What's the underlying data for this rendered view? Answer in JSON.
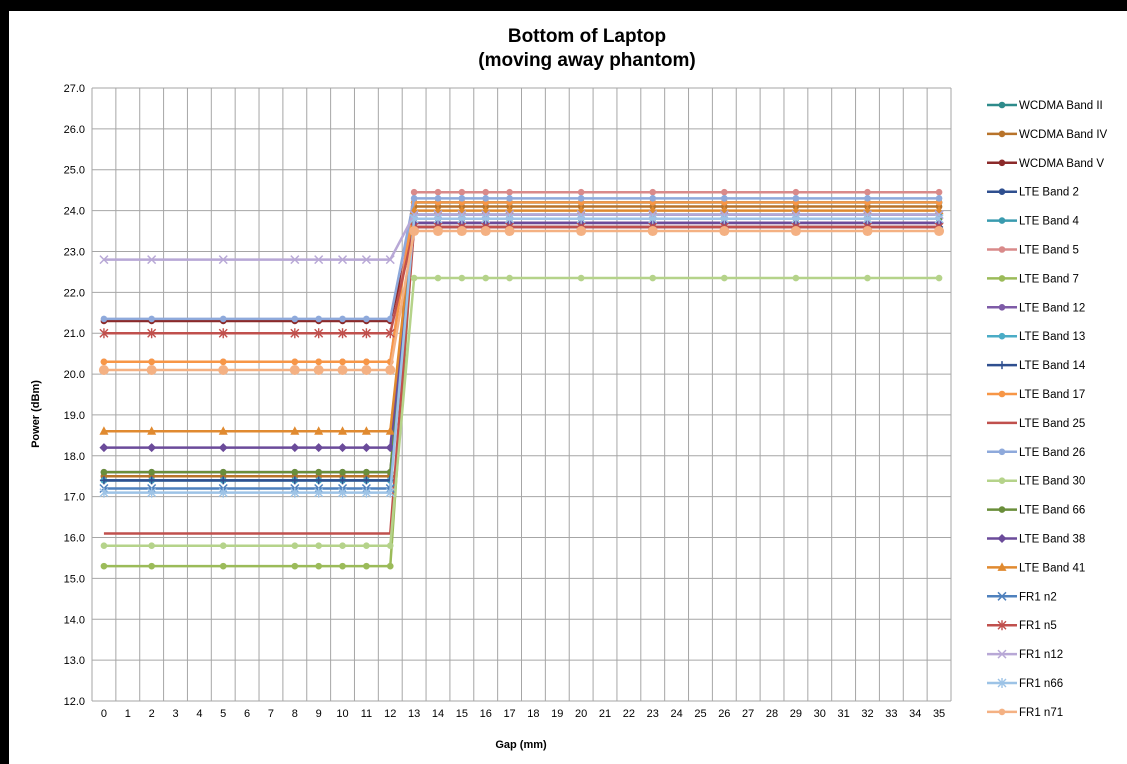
{
  "chart_data": {
    "type": "line",
    "title_line1": "Bottom of Laptop",
    "title_line2": "(moving away phantom)",
    "xlabel": "Gap (mm)",
    "ylabel": "Power (dBm)",
    "ylim": [
      12.0,
      27.0
    ],
    "yticks": [
      "12.0",
      "13.0",
      "14.0",
      "15.0",
      "16.0",
      "17.0",
      "18.0",
      "19.0",
      "20.0",
      "21.0",
      "22.0",
      "23.0",
      "24.0",
      "25.0",
      "26.0",
      "27.0"
    ],
    "categories": [
      "0",
      "1",
      "2",
      "3",
      "4",
      "5",
      "6",
      "7",
      "8",
      "9",
      "10",
      "11",
      "12",
      "13",
      "14",
      "15",
      "16",
      "17",
      "18",
      "19",
      "20",
      "21",
      "22",
      "23",
      "24",
      "25",
      "26",
      "27",
      "28",
      "29",
      "30",
      "31",
      "32",
      "33",
      "34",
      "35"
    ],
    "grid": true,
    "legend_position": "right",
    "marker_x": [
      0,
      2,
      5,
      8,
      9,
      10,
      11,
      12,
      13,
      14,
      15,
      16,
      17,
      20,
      23,
      26,
      29,
      32,
      35
    ],
    "series": [
      {
        "name": "WCDMA Band II",
        "color": "#2E8B8B",
        "marker": "circle",
        "before": 17.5,
        "after": 24.2
      },
      {
        "name": "WCDMA Band IV",
        "color": "#B8732A",
        "marker": "circle",
        "before": 17.5,
        "after": 24.1
      },
      {
        "name": "WCDMA Band V",
        "color": "#8B2A2A",
        "marker": "circle",
        "before": 21.3,
        "after": 23.7
      },
      {
        "name": "LTE Band 2",
        "color": "#2F4F8F",
        "marker": "circle",
        "before": 17.4,
        "after": 23.6
      },
      {
        "name": "LTE Band 4",
        "color": "#3A9BAF",
        "marker": "circle",
        "before": 17.4,
        "after": 24.2
      },
      {
        "name": "LTE Band 5",
        "color": "#D98A8A",
        "marker": "circle",
        "before": 20.3,
        "after": 24.45
      },
      {
        "name": "LTE Band 7",
        "color": "#9BBB59",
        "marker": "circle",
        "before": 15.3,
        "after": 23.8
      },
      {
        "name": "LTE Band 12",
        "color": "#7E5BA7",
        "marker": "circle",
        "before": 17.6,
        "after": 23.7
      },
      {
        "name": "LTE Band 13",
        "color": "#4BACC6",
        "marker": "circle",
        "before": 17.4,
        "after": 23.9
      },
      {
        "name": "LTE Band 14",
        "color": "#2F4F8F",
        "marker": "plus",
        "before": 17.4,
        "after": 23.6
      },
      {
        "name": "LTE Band 17",
        "color": "#F79646",
        "marker": "circle",
        "before": 20.3,
        "after": 24.2
      },
      {
        "name": "LTE Band 25",
        "color": "#C0504D",
        "marker": "none",
        "before": 16.1,
        "after": 23.6
      },
      {
        "name": "LTE Band 26",
        "color": "#8EA9DB",
        "marker": "circle",
        "before": 21.35,
        "after": 24.3
      },
      {
        "name": "LTE Band 30",
        "color": "#B5D38A",
        "marker": "circle",
        "before": 15.8,
        "after": 22.35
      },
      {
        "name": "LTE Band 66",
        "color": "#6A8E3A",
        "marker": "circle",
        "before": 17.6,
        "after": 23.8
      },
      {
        "name": "LTE Band 38",
        "color": "#6B4B9A",
        "marker": "diamond",
        "before": 18.2,
        "after": 23.7
      },
      {
        "name": "LTE Band 41",
        "color": "#E08A30",
        "marker": "triangle",
        "before": 18.6,
        "after": 24.0
      },
      {
        "name": "FR1 n2",
        "color": "#4F81BD",
        "marker": "x",
        "before": 17.2,
        "after": 23.9
      },
      {
        "name": "FR1 n5",
        "color": "#C0504D",
        "marker": "star",
        "before": 21.0,
        "after": 23.6
      },
      {
        "name": "FR1 n12",
        "color": "#B8A8D6",
        "marker": "x",
        "before": 22.8,
        "after": 23.9
      },
      {
        "name": "FR1 n66",
        "color": "#9DC3E6",
        "marker": "star",
        "before": 17.1,
        "after": 23.8
      },
      {
        "name": "FR1 n71",
        "color": "#F4B183",
        "marker": "bigcircle",
        "before": 20.1,
        "after": 23.5
      }
    ]
  }
}
